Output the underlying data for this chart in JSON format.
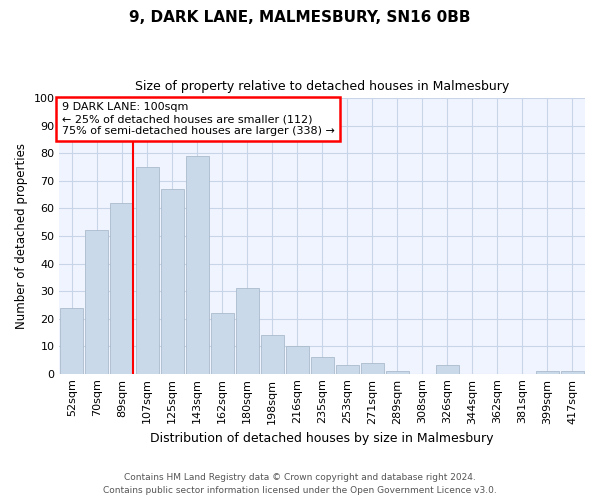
{
  "title": "9, DARK LANE, MALMESBURY, SN16 0BB",
  "subtitle": "Size of property relative to detached houses in Malmesbury",
  "xlabel": "Distribution of detached houses by size in Malmesbury",
  "ylabel": "Number of detached properties",
  "bar_labels": [
    "52sqm",
    "70sqm",
    "89sqm",
    "107sqm",
    "125sqm",
    "143sqm",
    "162sqm",
    "180sqm",
    "198sqm",
    "216sqm",
    "235sqm",
    "253sqm",
    "271sqm",
    "289sqm",
    "308sqm",
    "326sqm",
    "344sqm",
    "362sqm",
    "381sqm",
    "399sqm",
    "417sqm"
  ],
  "bar_heights": [
    24,
    52,
    62,
    75,
    67,
    79,
    22,
    31,
    14,
    10,
    6,
    3,
    4,
    1,
    0,
    3,
    0,
    0,
    0,
    1,
    1
  ],
  "bar_color": "#c9d9ea",
  "bar_edge_color": "#aabbcc",
  "vline_color": "red",
  "annotation_title": "9 DARK LANE: 100sqm",
  "annotation_line1": "← 25% of detached houses are smaller (112)",
  "annotation_line2": "75% of semi-detached houses are larger (338) →",
  "ylim": [
    0,
    100
  ],
  "yticks": [
    0,
    10,
    20,
    30,
    40,
    50,
    60,
    70,
    80,
    90,
    100
  ],
  "footer_line1": "Contains HM Land Registry data © Crown copyright and database right 2024.",
  "footer_line2": "Contains public sector information licensed under the Open Government Licence v3.0.",
  "bg_color": "#f0f4ff",
  "grid_color": "#c8d4e8"
}
